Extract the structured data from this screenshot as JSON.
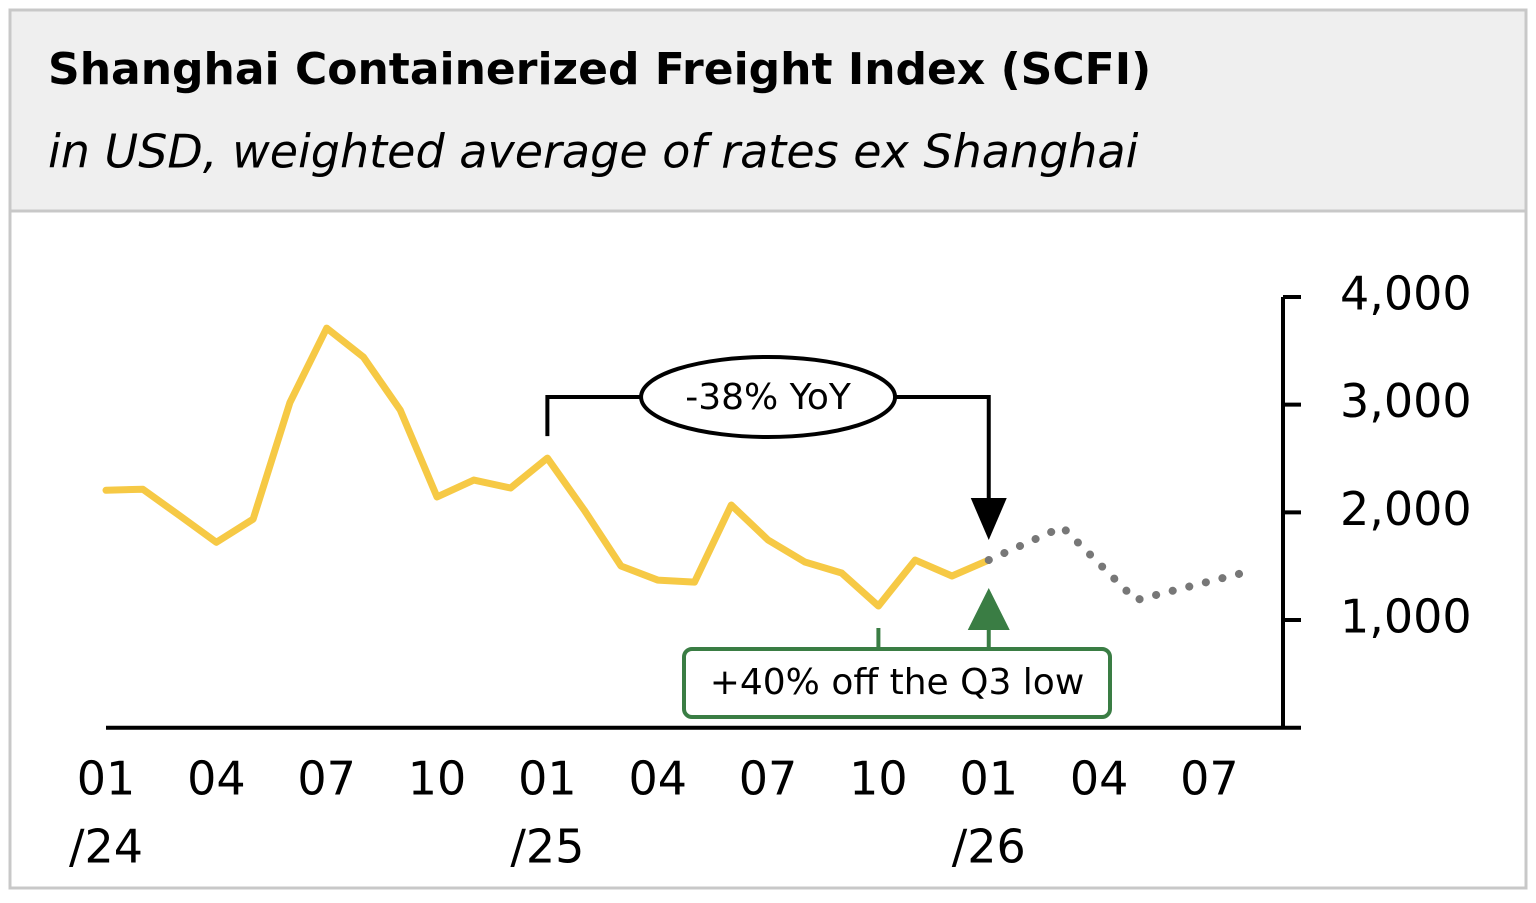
{
  "chart_data": {
    "type": "line",
    "title": "Shanghai Containerized Freight Index (SCFI)",
    "subtitle": "in USD, weighted average of rates ex Shanghai",
    "x": [
      "2024-01",
      "2024-02",
      "2024-03",
      "2024-04",
      "2024-05",
      "2024-06",
      "2024-07",
      "2024-08",
      "2024-09",
      "2024-10",
      "2024-11",
      "2024-12",
      "2025-01",
      "2025-02",
      "2025-03",
      "2025-04",
      "2025-05",
      "2025-06",
      "2025-07",
      "2025-08",
      "2025-09",
      "2025-10",
      "2025-11",
      "2025-12",
      "2026-01"
    ],
    "series": [
      {
        "name": "SCFI",
        "color": "#f6c945",
        "style": "solid",
        "values": [
          2205,
          2215,
          1970,
          1722,
          1937,
          3020,
          3711,
          3442,
          2950,
          2143,
          2300,
          2226,
          2504,
          2022,
          1502,
          1371,
          1352,
          2068,
          1743,
          1539,
          1437,
          1130,
          1557,
          1409,
          1557
        ]
      },
      {
        "name": "Forecast",
        "color": "#777777",
        "style": "dotted",
        "x": [
          "2026-01",
          "2026-03",
          "2026-05",
          "2026-08"
        ],
        "values": [
          1557,
          1864,
          1185,
          1445
        ]
      }
    ],
    "xlim": [
      "2024-01",
      "2026-09"
    ],
    "xticks": [
      {
        "value": "2024-01",
        "label": "01",
        "year_label": "/24"
      },
      {
        "value": "2024-04",
        "label": "04"
      },
      {
        "value": "2024-07",
        "label": "07"
      },
      {
        "value": "2024-10",
        "label": "10"
      },
      {
        "value": "2025-01",
        "label": "01",
        "year_label": "/25"
      },
      {
        "value": "2025-04",
        "label": "04"
      },
      {
        "value": "2025-07",
        "label": "07"
      },
      {
        "value": "2025-10",
        "label": "10"
      },
      {
        "value": "2026-01",
        "label": "01",
        "year_label": "/26"
      },
      {
        "value": "2026-04",
        "label": "04"
      },
      {
        "value": "2026-07",
        "label": "07"
      }
    ],
    "ylim": [
      0,
      4000
    ],
    "yticks": [
      {
        "value": 1000,
        "label": "1,000"
      },
      {
        "value": 2000,
        "label": "2,000"
      },
      {
        "value": 3000,
        "label": "3,000"
      },
      {
        "value": 4000,
        "label": "4,000"
      }
    ],
    "annotations": [
      {
        "text": "-38% YoY",
        "color": "#000000"
      },
      {
        "text": "+40% off the Q3 low",
        "color": "#3a7d44"
      }
    ]
  }
}
